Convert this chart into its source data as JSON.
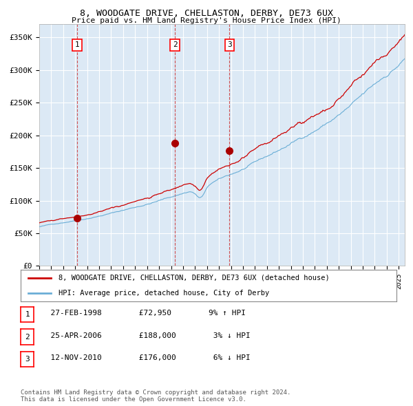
{
  "title1": "8, WOODGATE DRIVE, CHELLASTON, DERBY, DE73 6UX",
  "title2": "Price paid vs. HM Land Registry's House Price Index (HPI)",
  "ylim": [
    0,
    370000
  ],
  "yticks": [
    0,
    50000,
    100000,
    150000,
    200000,
    250000,
    300000,
    350000
  ],
  "ytick_labels": [
    "£0",
    "£50K",
    "£100K",
    "£150K",
    "£200K",
    "£250K",
    "£300K",
    "£350K"
  ],
  "hpi_color": "#6aaed6",
  "price_color": "#cc0000",
  "marker_color": "#aa0000",
  "bg_color": "#dce9f5",
  "grid_color": "#ffffff",
  "vline_color": "#cc3333",
  "sale1_date": 1998.15,
  "sale1_price": 72950,
  "sale2_date": 2006.32,
  "sale2_price": 188000,
  "sale3_date": 2010.87,
  "sale3_price": 176000,
  "legend_line1": "8, WOODGATE DRIVE, CHELLASTON, DERBY, DE73 6UX (detached house)",
  "legend_line2": "HPI: Average price, detached house, City of Derby",
  "table_data": [
    [
      "1",
      "27-FEB-1998",
      "£72,950",
      "9% ↑ HPI"
    ],
    [
      "2",
      "25-APR-2006",
      "£188,000",
      "3% ↓ HPI"
    ],
    [
      "3",
      "12-NOV-2010",
      "£176,000",
      "6% ↓ HPI"
    ]
  ],
  "footnote1": "Contains HM Land Registry data © Crown copyright and database right 2024.",
  "footnote2": "This data is licensed under the Open Government Licence v3.0."
}
